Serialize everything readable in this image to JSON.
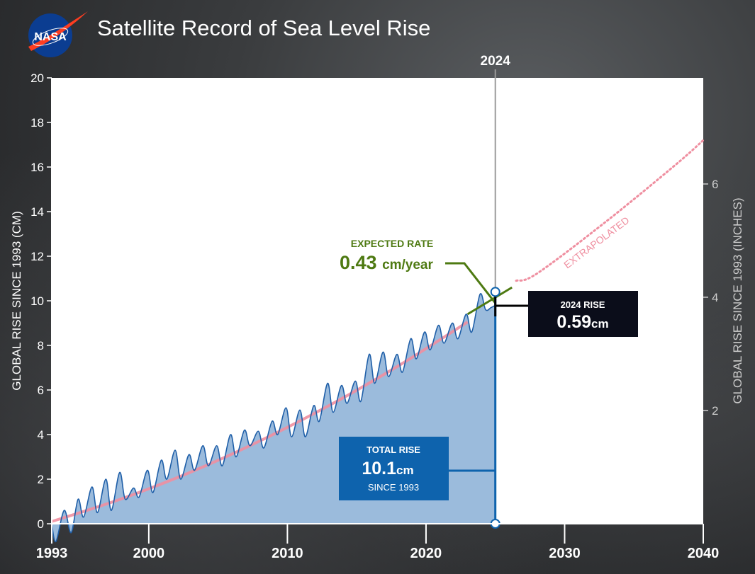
{
  "logo": {
    "text": "NASA"
  },
  "chart_data": {
    "type": "area",
    "title": "Satellite Record of Sea Level Rise",
    "ylabel": "GLOBAL RISE SINCE 1993 (CM)",
    "ylabel_right": "GLOBAL RISE SINCE 1993 (INCHES)",
    "xlim": [
      1993,
      2040
    ],
    "ylim": [
      0,
      20
    ],
    "x_ticks": [
      "1993",
      "2000",
      "2010",
      "2020",
      "2030",
      "2040"
    ],
    "x_tick_values": [
      1993,
      2000,
      2010,
      2020,
      2030,
      2040
    ],
    "y_ticks": [
      0,
      2,
      4,
      6,
      8,
      10,
      12,
      14,
      16,
      18,
      20
    ],
    "y_right_ticks": [
      2,
      4,
      6
    ],
    "grid": false,
    "colors": {
      "observed": "#1f5fa8",
      "fill": "#9bbbdc",
      "trend": "#ef8fa0",
      "rate": "#4e7a12",
      "total_box": "#0e63ad",
      "rise_box": "#0b0d1a"
    },
    "observed_series": {
      "x": [
        1993.0,
        1993.3,
        1993.9,
        1994.4,
        1994.9,
        1995.3,
        1995.9,
        1996.3,
        1996.9,
        1997.3,
        1997.9,
        1998.3,
        1998.9,
        1999.3,
        1999.9,
        2000.3,
        2000.9,
        2001.3,
        2001.9,
        2002.3,
        2002.9,
        2003.3,
        2003.9,
        2004.3,
        2004.9,
        2005.3,
        2005.9,
        2006.3,
        2006.9,
        2007.3,
        2007.9,
        2008.3,
        2008.9,
        2009.3,
        2009.9,
        2010.3,
        2010.9,
        2011.3,
        2011.9,
        2012.3,
        2012.9,
        2013.3,
        2013.9,
        2014.3,
        2014.9,
        2015.3,
        2015.9,
        2016.3,
        2016.9,
        2017.3,
        2017.9,
        2018.3,
        2018.9,
        2019.3,
        2019.9,
        2020.3,
        2020.9,
        2021.3,
        2021.9,
        2022.3,
        2022.9,
        2023.3,
        2023.9,
        2024.3,
        2024.7,
        2025.0
      ],
      "y": [
        0.0,
        -0.8,
        0.6,
        -0.4,
        1.1,
        0.3,
        1.65,
        0.5,
        2.0,
        0.6,
        2.3,
        1.1,
        1.6,
        1.2,
        2.4,
        1.4,
        2.85,
        2.0,
        3.3,
        2.0,
        3.1,
        2.4,
        3.5,
        2.6,
        3.5,
        2.6,
        4.0,
        3.0,
        4.2,
        3.5,
        4.15,
        3.4,
        4.6,
        4.0,
        5.2,
        3.9,
        5.1,
        3.9,
        5.3,
        4.6,
        6.3,
        5.0,
        6.2,
        5.4,
        6.4,
        5.5,
        7.6,
        6.3,
        7.7,
        6.6,
        7.6,
        6.8,
        8.3,
        7.4,
        8.6,
        7.8,
        8.9,
        8.1,
        9.0,
        8.3,
        9.4,
        8.6,
        10.3,
        9.6,
        9.7,
        9.8
      ]
    },
    "trend_series": {
      "x": [
        1993,
        1998,
        2003,
        2008,
        2013,
        2018,
        2023
      ],
      "y": [
        0.1,
        1.11,
        2.31,
        3.71,
        5.3,
        7.08,
        9.05
      ]
    },
    "rate_segment": {
      "x": [
        2023,
        2026.2
      ],
      "y": [
        9.4,
        10.6
      ]
    },
    "extrapolated_series": {
      "x": [
        2026.5,
        2028,
        2033,
        2038,
        2040
      ],
      "y": [
        10.9,
        11.22,
        13.56,
        16.1,
        17.2
      ],
      "label": "EXTRAPOLATED"
    },
    "marker_year": {
      "label": "2024",
      "x": 2025.0
    },
    "annotations": {
      "expected_rate_title": "EXPECTED RATE",
      "expected_rate_value": "0.43",
      "expected_rate_unit": "cm/year",
      "rise_2024_title": "2024 RISE",
      "rise_2024_value": "0.59",
      "rise_2024_unit": "cm",
      "total_rise_title": "TOTAL RISE",
      "total_rise_value": "10.1",
      "total_rise_unit": "cm",
      "total_rise_since": "SINCE 1993"
    }
  }
}
